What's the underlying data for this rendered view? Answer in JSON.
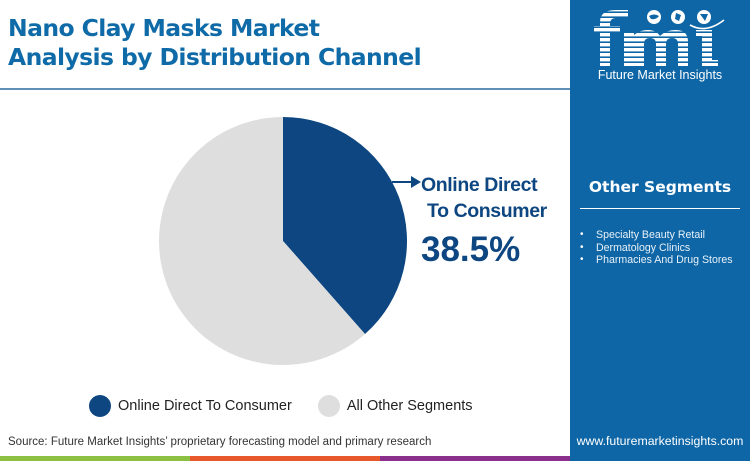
{
  "header": {
    "title_line1": "Nano Clay Masks Market",
    "title_line2": "Analysis by Distribution Channel"
  },
  "callout": {
    "label_line1": "Online Direct",
    "label_line2": "To Consumer",
    "value": "38.5%",
    "icon": "arrow-right-icon"
  },
  "legend": {
    "items": [
      {
        "label": "Online Direct To Consumer",
        "color": "#0d4680"
      },
      {
        "label": "All Other Segments",
        "color": "#dedede"
      }
    ]
  },
  "footer": {
    "source": "Source: Future Market Insights’ proprietary forecasting model and primary research",
    "stripe_colors": [
      "#8cc043",
      "#e8582a",
      "#8b2f8c"
    ]
  },
  "sidebar": {
    "logo_text": "fmi",
    "logo_subtitle": "Future Market Insights",
    "segments_title": "Other Segments",
    "segments": [
      "Specialty Beauty Retail",
      "Dermatology Clinics",
      "Pharmacies And Drug Stores"
    ],
    "url": "www.futuremarketinsights.com",
    "background": "#0e66a6"
  },
  "chart_data": {
    "type": "pie",
    "title": "Nano Clay Masks Market Analysis by Distribution Channel",
    "categories": [
      "Online Direct To Consumer",
      "All Other Segments"
    ],
    "values": [
      38.5,
      61.5
    ],
    "unit": "%",
    "colors": [
      "#0d4680",
      "#dedede"
    ],
    "start_angle": "12 o'clock, clockwise",
    "annotations": [
      {
        "target": "Online Direct To Consumer",
        "text": "38.5%"
      }
    ],
    "legend_position": "bottom"
  }
}
